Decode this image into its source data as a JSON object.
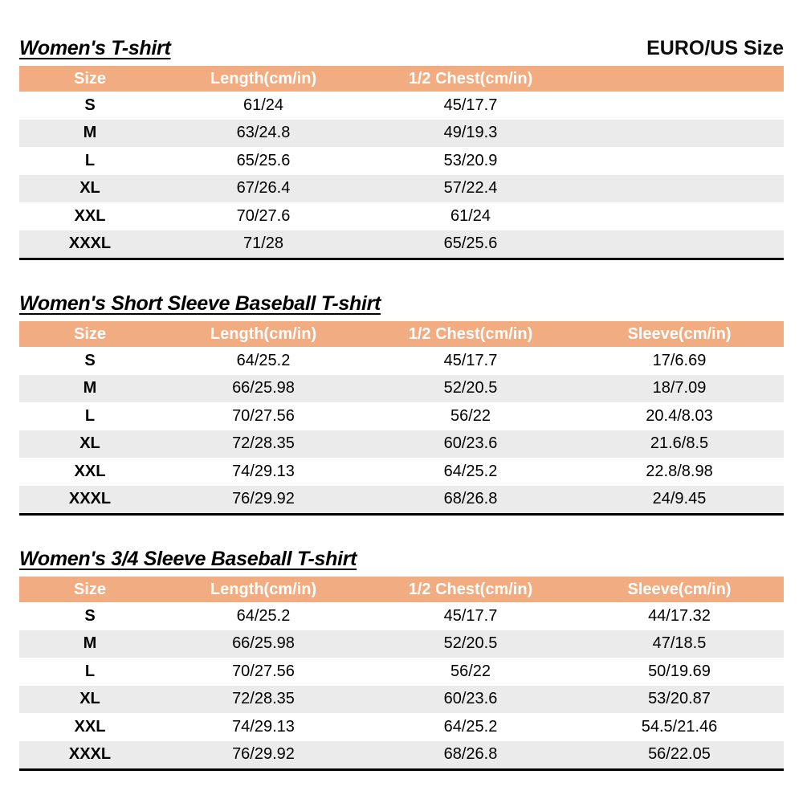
{
  "page": {
    "size_standard": "EURO/US Size"
  },
  "colors": {
    "header_bg": "#F1AC81",
    "header_text": "#FFFFFF",
    "stripe_bg": "#EBEBEB",
    "table_bottom_border": "#000000",
    "page_bg": "#FFFFFF"
  },
  "tables": [
    {
      "title": "Women's T-shirt",
      "columns": [
        "Size",
        "Length(cm/in)",
        "1/2 Chest(cm/in)",
        ""
      ],
      "rows": [
        [
          "S",
          "61/24",
          "45/17.7",
          ""
        ],
        [
          "M",
          "63/24.8",
          "49/19.3",
          ""
        ],
        [
          "L",
          "65/25.6",
          "53/20.9",
          ""
        ],
        [
          "XL",
          "67/26.4",
          "57/22.4",
          ""
        ],
        [
          "XXL",
          "70/27.6",
          "61/24",
          ""
        ],
        [
          "XXXL",
          "71/28",
          "65/25.6",
          ""
        ]
      ]
    },
    {
      "title": "Women's Short Sleeve Baseball T-shirt",
      "columns": [
        "Size",
        "Length(cm/in)",
        "1/2 Chest(cm/in)",
        "Sleeve(cm/in)"
      ],
      "rows": [
        [
          "S",
          "64/25.2",
          "45/17.7",
          "17/6.69"
        ],
        [
          "M",
          "66/25.98",
          "52/20.5",
          "18/7.09"
        ],
        [
          "L",
          "70/27.56",
          "56/22",
          "20.4/8.03"
        ],
        [
          "XL",
          "72/28.35",
          "60/23.6",
          "21.6/8.5"
        ],
        [
          "XXL",
          "74/29.13",
          "64/25.2",
          "22.8/8.98"
        ],
        [
          "XXXL",
          "76/29.92",
          "68/26.8",
          "24/9.45"
        ]
      ]
    },
    {
      "title": "Women's 3/4 Sleeve Baseball T-shirt",
      "columns": [
        "Size",
        "Length(cm/in)",
        "1/2 Chest(cm/in)",
        "Sleeve(cm/in)"
      ],
      "rows": [
        [
          "S",
          "64/25.2",
          "45/17.7",
          "44/17.32"
        ],
        [
          "M",
          "66/25.98",
          "52/20.5",
          "47/18.5"
        ],
        [
          "L",
          "70/27.56",
          "56/22",
          "50/19.69"
        ],
        [
          "XL",
          "72/28.35",
          "60/23.6",
          "53/20.87"
        ],
        [
          "XXL",
          "74/29.13",
          "64/25.2",
          "54.5/21.46"
        ],
        [
          "XXXL",
          "76/29.92",
          "68/26.8",
          "56/22.05"
        ]
      ]
    }
  ]
}
